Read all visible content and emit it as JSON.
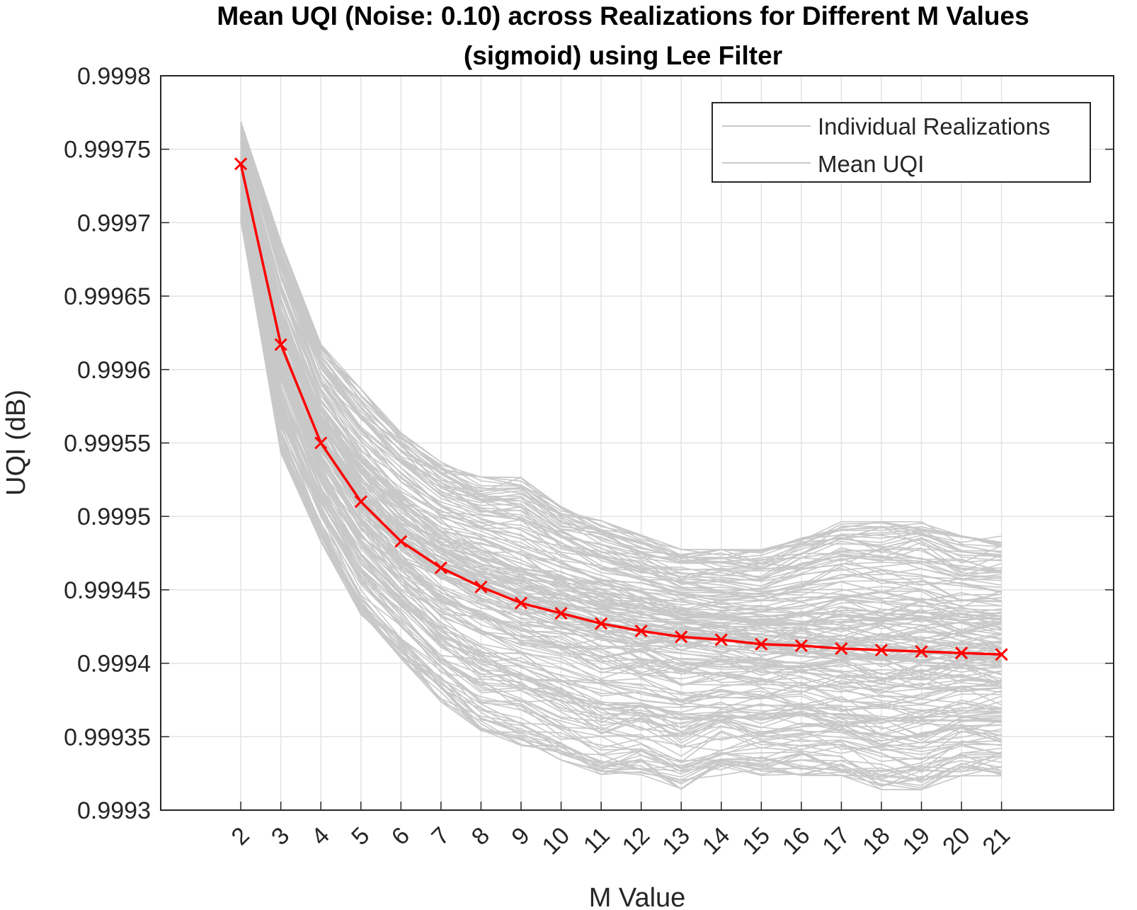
{
  "chart_data": {
    "type": "line",
    "title": "Mean UQI (Noise: 0.10) across Realizations for Different M Values (sigmoid) using Lee Filter",
    "title_lines": [
      "Mean UQI (Noise: 0.10) across Realizations for Different M Values",
      "(sigmoid) using Lee Filter"
    ],
    "xlabel": "M Value",
    "ylabel": "UQI (dB)",
    "x": [
      2,
      3,
      4,
      5,
      6,
      7,
      8,
      9,
      10,
      11,
      12,
      13,
      14,
      15,
      16,
      17,
      18,
      19,
      20,
      21
    ],
    "xlim": [
      0,
      23.8
    ],
    "ylim": [
      0.9993,
      0.9998
    ],
    "yticks": [
      0.9993,
      0.99935,
      0.9994,
      0.99945,
      0.9995,
      0.99955,
      0.9996,
      0.99965,
      0.9997,
      0.99975,
      0.9998
    ],
    "ytick_labels": [
      "0.9993",
      "0.99935",
      "0.9994",
      "0.99945",
      "0.9995",
      "0.99955",
      "0.9996",
      "0.99965",
      "0.9997",
      "0.99975",
      "0.9998"
    ],
    "xtick_labels": [
      "2",
      "3",
      "4",
      "5",
      "6",
      "7",
      "8",
      "9",
      "10",
      "11",
      "12",
      "13",
      "14",
      "15",
      "16",
      "17",
      "18",
      "19",
      "20",
      "21"
    ],
    "grid": true,
    "legend_position": "top-right",
    "series": [
      {
        "name": "Individual Realizations",
        "color": "#c8c8c8",
        "description": "many realizations spread around the mean curve",
        "envelope_upper": [
          0.99977,
          0.99969,
          0.99962,
          0.99959,
          0.99956,
          0.99954,
          0.99953,
          0.99953,
          0.99951,
          0.9995,
          0.99949,
          0.99948,
          0.99948,
          0.99948,
          0.99949,
          0.9995,
          0.9995,
          0.9995,
          0.99949,
          0.99949
        ],
        "envelope_lower": [
          0.9997,
          0.99954,
          0.99948,
          0.99943,
          0.9994,
          0.99937,
          0.99935,
          0.99934,
          0.99933,
          0.99932,
          0.99932,
          0.99931,
          0.99932,
          0.99932,
          0.99932,
          0.99932,
          0.99931,
          0.99931,
          0.99932,
          0.99932
        ]
      },
      {
        "name": "Mean UQI",
        "color": "#ff0000",
        "marker": "x",
        "values": [
          0.99974,
          0.999617,
          0.99955,
          0.99951,
          0.999483,
          0.999465,
          0.999452,
          0.999441,
          0.999434,
          0.999427,
          0.999422,
          0.999418,
          0.999416,
          0.999413,
          0.999412,
          0.99941,
          0.999409,
          0.999408,
          0.999407,
          0.999406
        ]
      }
    ]
  }
}
